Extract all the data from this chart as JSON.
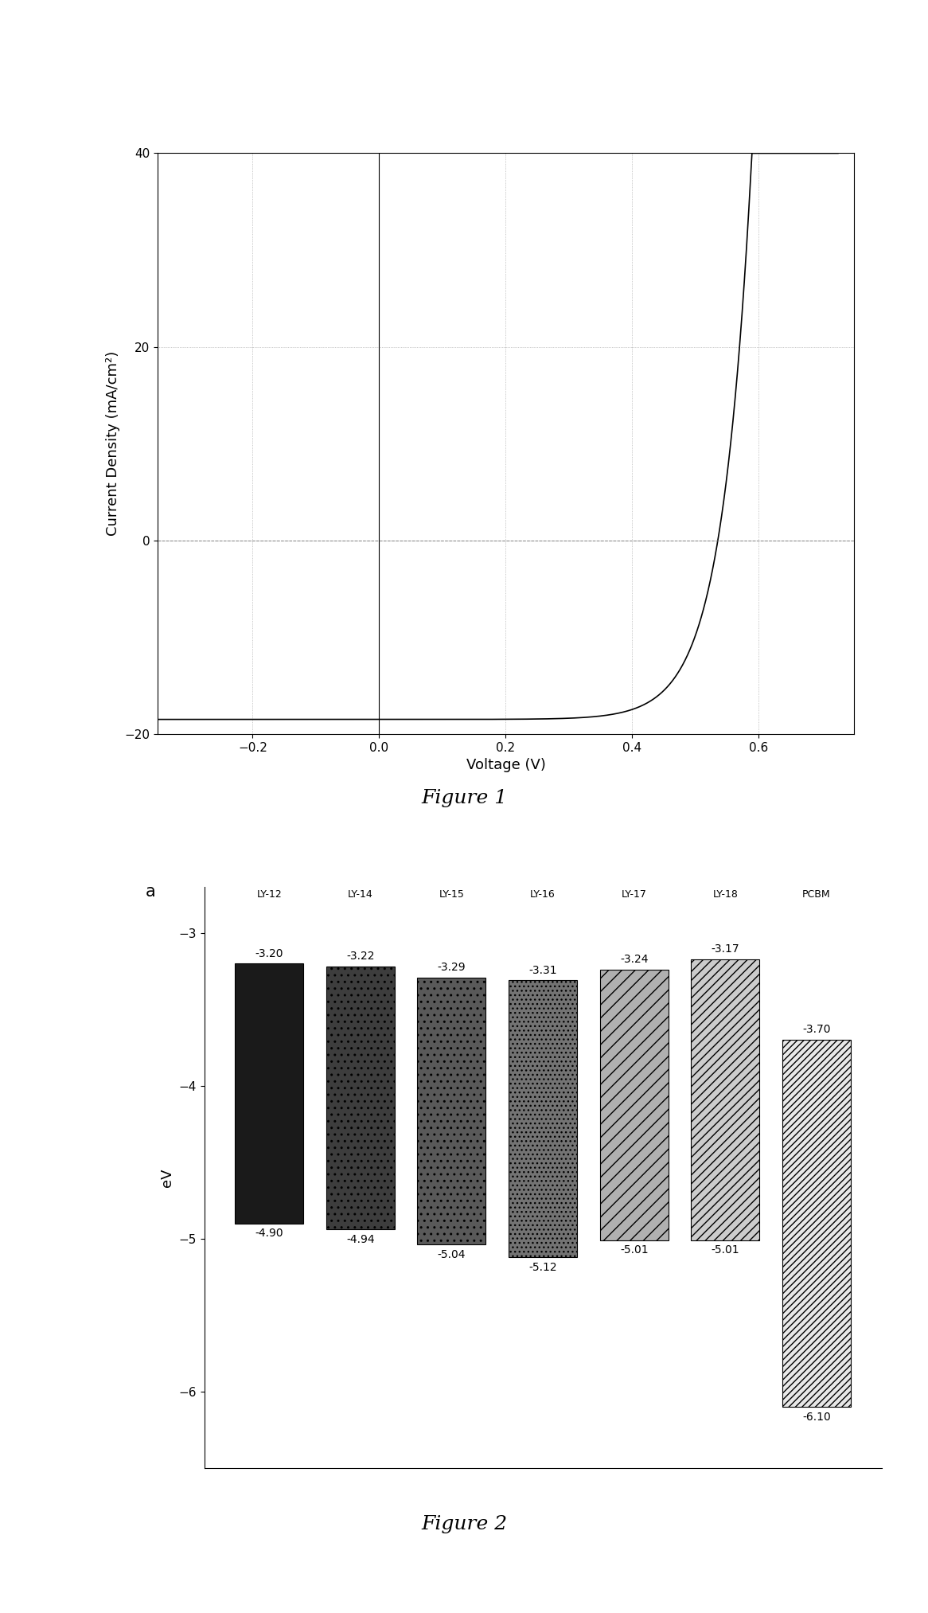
{
  "fig1": {
    "title": "Figure 1",
    "xlabel": "Voltage (V)",
    "ylabel": "Current Density (mA/cm²)",
    "xlim": [
      -0.35,
      0.75
    ],
    "ylim": [
      -20,
      40
    ],
    "xticks": [
      -0.2,
      0.0,
      0.2,
      0.4,
      0.6
    ],
    "yticks": [
      -20,
      0,
      20,
      40
    ],
    "diode_Is": 0.0002,
    "diode_n": 1.8,
    "diode_Isc": -18.5,
    "diode_VT": 0.026,
    "line_color": "#000000"
  },
  "fig2": {
    "title": "Figure 2",
    "ylabel": "eV",
    "label_a": "a",
    "ylim": [
      -6.5,
      -2.7
    ],
    "yticks": [
      -3,
      -4,
      -5,
      -6
    ],
    "categories": [
      "LY-12",
      "LY-14",
      "LY-15",
      "LY-16",
      "LY-17",
      "LY-18",
      "PCBM"
    ],
    "lumo": [
      -3.2,
      -3.22,
      -3.29,
      -3.31,
      -3.24,
      -3.17,
      -3.7
    ],
    "homo": [
      -4.9,
      -4.94,
      -5.04,
      -5.12,
      -5.01,
      -5.01,
      -6.1
    ],
    "facecolors": [
      "#1a1a1a",
      "#3d3d3d",
      "#595959",
      "#737373",
      "#b0b0b0",
      "#cccccc",
      "#e8e8e8"
    ],
    "hatch_patterns": [
      "",
      "..",
      "..",
      "...",
      "//",
      "///",
      "////"
    ],
    "bar_edge_colors": [
      "#000000",
      "#000000",
      "#000000",
      "#000000",
      "#000000",
      "#000000",
      "#000000"
    ]
  },
  "background_color": "#ffffff",
  "figure_label_fontsize": 18,
  "axis_label_fontsize": 13,
  "tick_fontsize": 11,
  "ann_fontsize": 10
}
